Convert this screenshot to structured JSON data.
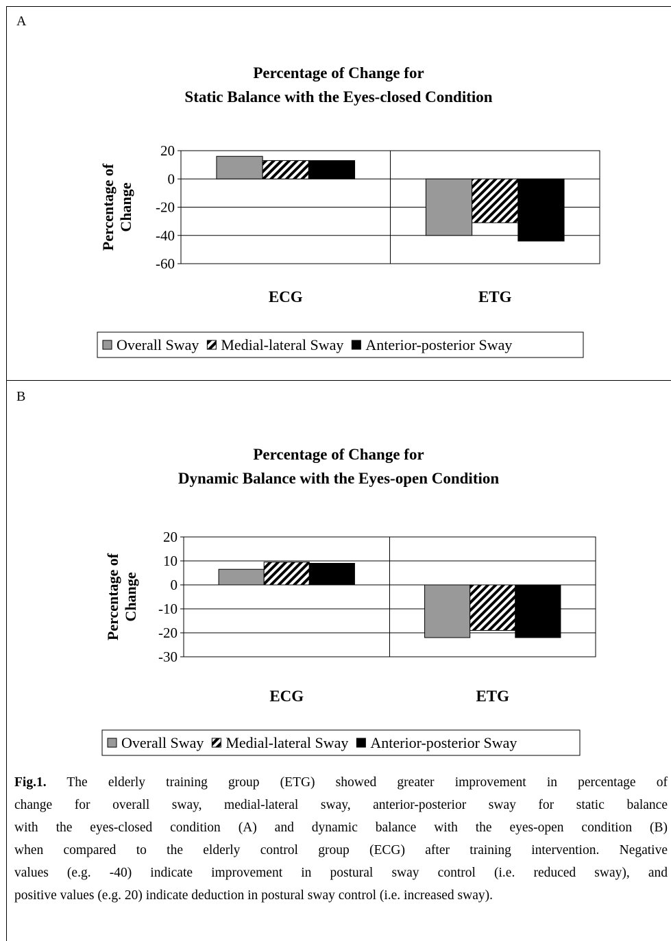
{
  "figure": {
    "panels": [
      "A",
      "B"
    ],
    "legend": [
      "Overall Sway",
      "Medial-lateral Sway",
      "Anterior-posterior Sway"
    ],
    "caption_lines": [
      {
        "lead": "Fig.1.",
        "text": " The elderly training group (ETG) showed greater improvement in percentage of"
      },
      {
        "text": "change for overall sway, medial-lateral sway, anterior-posterior sway for static balance"
      },
      {
        "text": "with the eyes-closed condition (A) and dynamic balance with the eyes-open condition (B)"
      },
      {
        "text": "when compared to the elderly control group (ECG) after training intervention. Negative"
      },
      {
        "text": "values (e.g. -40) indicate improvement in postural sway control (i.e. reduced sway), and"
      },
      {
        "text": "positive values (e.g. 20) indicate deduction in postural sway control (i.e. increased sway)."
      }
    ]
  },
  "chart_data": [
    {
      "type": "bar",
      "panel": "A",
      "title_lines": [
        "Percentage of Change for",
        "Static Balance with the Eyes-closed Condition"
      ],
      "ylabel_lines": [
        "Percentage of",
        "Change"
      ],
      "xlabel": "",
      "categories": [
        "ECG",
        "ETG"
      ],
      "ylim": [
        -60,
        20
      ],
      "yticks": [
        20,
        0,
        -20,
        -40,
        -60
      ],
      "grid": true,
      "legend_position": "bottom",
      "series": [
        {
          "name": "Overall Sway",
          "values": [
            16,
            -40
          ],
          "fill": "#999999"
        },
        {
          "name": "Medial-lateral Sway",
          "values": [
            13,
            -31
          ],
          "fill": "hatch"
        },
        {
          "name": "Anterior-posterior Sway",
          "values": [
            13,
            -44
          ],
          "fill": "#000000"
        }
      ]
    },
    {
      "type": "bar",
      "panel": "B",
      "title_lines": [
        "Percentage of Change for",
        "Dynamic Balance with the Eyes-open Condition"
      ],
      "ylabel_lines": [
        "Percentage of",
        "Change"
      ],
      "xlabel": "",
      "categories": [
        "ECG",
        "ETG"
      ],
      "ylim": [
        -30,
        20
      ],
      "yticks": [
        20,
        10,
        0,
        -10,
        -20,
        -30
      ],
      "grid": true,
      "legend_position": "bottom",
      "series": [
        {
          "name": "Overall Sway",
          "values": [
            6.5,
            -22
          ],
          "fill": "#999999"
        },
        {
          "name": "Medial-lateral Sway",
          "values": [
            9.5,
            -19
          ],
          "fill": "hatch"
        },
        {
          "name": "Anterior-posterior Sway",
          "values": [
            9,
            -22
          ],
          "fill": "#000000"
        }
      ]
    }
  ]
}
